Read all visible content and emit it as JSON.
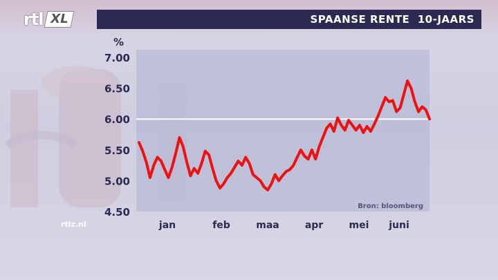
{
  "header": {
    "logo_text": "rtl",
    "logo_badge": "XL",
    "title": "SPAANSE RENTE  10-JAARS"
  },
  "watermark": "rtlz.nl",
  "colors": {
    "title_bar": "#2a2a52",
    "line": "#ee1111",
    "reference_line": "#ffffff",
    "text": "#2a2a52"
  },
  "chart_data": {
    "type": "line",
    "title": "SPAANSE RENTE  10-JAARS",
    "ylabel": "%",
    "source": "Bron: bloomberg",
    "ylim": [
      4.5,
      7.0
    ],
    "yticks": [
      "7.00",
      "6.50",
      "6.00",
      "5.50",
      "5.00",
      "4.50"
    ],
    "ytick_values": [
      7.0,
      6.5,
      6.0,
      5.5,
      5.0,
      4.5
    ],
    "xticks": [
      "jan",
      "feb",
      "maa",
      "apr",
      "mei",
      "juni"
    ],
    "reference_line": 6.0,
    "grid": false,
    "series": [
      {
        "values": [
          5.62,
          5.48,
          5.3,
          5.05,
          5.25,
          5.38,
          5.32,
          5.18,
          5.05,
          5.22,
          5.45,
          5.7,
          5.55,
          5.3,
          5.08,
          5.2,
          5.12,
          5.28,
          5.48,
          5.42,
          5.2,
          5.0,
          4.88,
          4.95,
          5.05,
          5.12,
          5.22,
          5.32,
          5.25,
          5.38,
          5.28,
          5.1,
          5.05,
          5.0,
          4.9,
          4.85,
          4.95,
          5.1,
          5.0,
          5.08,
          5.15,
          5.18,
          5.25,
          5.38,
          5.5,
          5.4,
          5.35,
          5.5,
          5.35,
          5.55,
          5.7,
          5.85,
          5.92,
          5.8,
          6.02,
          5.9,
          5.82,
          5.98,
          5.9,
          5.82,
          5.9,
          5.78,
          5.88,
          5.8,
          5.92,
          6.05,
          6.2,
          6.35,
          6.28,
          6.3,
          6.12,
          6.18,
          6.4,
          6.62,
          6.5,
          6.28,
          6.12,
          6.2,
          6.15,
          6.0
        ]
      }
    ]
  }
}
